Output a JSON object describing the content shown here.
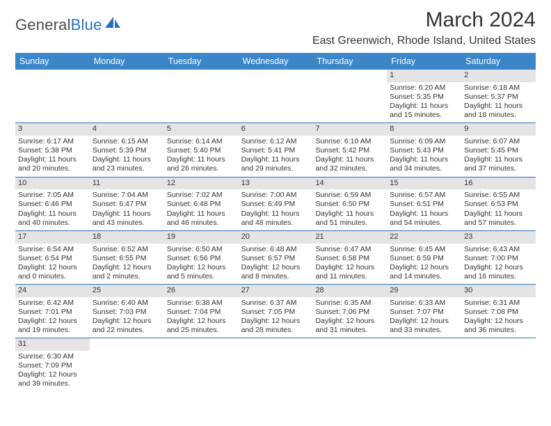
{
  "logo": {
    "general": "General",
    "blue": "Blue"
  },
  "title": "March 2024",
  "location": "East Greenwich, Rhode Island, United States",
  "colors": {
    "header_bg": "#3a86c8",
    "header_text": "#ffffff",
    "daynum_bg": "#e4e4e4",
    "row_border": "#2a71b8",
    "text": "#333333",
    "logo_blue": "#2a71b8"
  },
  "day_headers": [
    "Sunday",
    "Monday",
    "Tuesday",
    "Wednesday",
    "Thursday",
    "Friday",
    "Saturday"
  ],
  "weeks": [
    [
      null,
      null,
      null,
      null,
      null,
      {
        "n": "1",
        "sr": "Sunrise: 6:20 AM",
        "ss": "Sunset: 5:35 PM",
        "dl1": "Daylight: 11 hours",
        "dl2": "and 15 minutes."
      },
      {
        "n": "2",
        "sr": "Sunrise: 6:18 AM",
        "ss": "Sunset: 5:37 PM",
        "dl1": "Daylight: 11 hours",
        "dl2": "and 18 minutes."
      }
    ],
    [
      {
        "n": "3",
        "sr": "Sunrise: 6:17 AM",
        "ss": "Sunset: 5:38 PM",
        "dl1": "Daylight: 11 hours",
        "dl2": "and 20 minutes."
      },
      {
        "n": "4",
        "sr": "Sunrise: 6:15 AM",
        "ss": "Sunset: 5:39 PM",
        "dl1": "Daylight: 11 hours",
        "dl2": "and 23 minutes."
      },
      {
        "n": "5",
        "sr": "Sunrise: 6:14 AM",
        "ss": "Sunset: 5:40 PM",
        "dl1": "Daylight: 11 hours",
        "dl2": "and 26 minutes."
      },
      {
        "n": "6",
        "sr": "Sunrise: 6:12 AM",
        "ss": "Sunset: 5:41 PM",
        "dl1": "Daylight: 11 hours",
        "dl2": "and 29 minutes."
      },
      {
        "n": "7",
        "sr": "Sunrise: 6:10 AM",
        "ss": "Sunset: 5:42 PM",
        "dl1": "Daylight: 11 hours",
        "dl2": "and 32 minutes."
      },
      {
        "n": "8",
        "sr": "Sunrise: 6:09 AM",
        "ss": "Sunset: 5:43 PM",
        "dl1": "Daylight: 11 hours",
        "dl2": "and 34 minutes."
      },
      {
        "n": "9",
        "sr": "Sunrise: 6:07 AM",
        "ss": "Sunset: 5:45 PM",
        "dl1": "Daylight: 11 hours",
        "dl2": "and 37 minutes."
      }
    ],
    [
      {
        "n": "10",
        "sr": "Sunrise: 7:05 AM",
        "ss": "Sunset: 6:46 PM",
        "dl1": "Daylight: 11 hours",
        "dl2": "and 40 minutes."
      },
      {
        "n": "11",
        "sr": "Sunrise: 7:04 AM",
        "ss": "Sunset: 6:47 PM",
        "dl1": "Daylight: 11 hours",
        "dl2": "and 43 minutes."
      },
      {
        "n": "12",
        "sr": "Sunrise: 7:02 AM",
        "ss": "Sunset: 6:48 PM",
        "dl1": "Daylight: 11 hours",
        "dl2": "and 46 minutes."
      },
      {
        "n": "13",
        "sr": "Sunrise: 7:00 AM",
        "ss": "Sunset: 6:49 PM",
        "dl1": "Daylight: 11 hours",
        "dl2": "and 48 minutes."
      },
      {
        "n": "14",
        "sr": "Sunrise: 6:59 AM",
        "ss": "Sunset: 6:50 PM",
        "dl1": "Daylight: 11 hours",
        "dl2": "and 51 minutes."
      },
      {
        "n": "15",
        "sr": "Sunrise: 6:57 AM",
        "ss": "Sunset: 6:51 PM",
        "dl1": "Daylight: 11 hours",
        "dl2": "and 54 minutes."
      },
      {
        "n": "16",
        "sr": "Sunrise: 6:55 AM",
        "ss": "Sunset: 6:53 PM",
        "dl1": "Daylight: 11 hours",
        "dl2": "and 57 minutes."
      }
    ],
    [
      {
        "n": "17",
        "sr": "Sunrise: 6:54 AM",
        "ss": "Sunset: 6:54 PM",
        "dl1": "Daylight: 12 hours",
        "dl2": "and 0 minutes."
      },
      {
        "n": "18",
        "sr": "Sunrise: 6:52 AM",
        "ss": "Sunset: 6:55 PM",
        "dl1": "Daylight: 12 hours",
        "dl2": "and 2 minutes."
      },
      {
        "n": "19",
        "sr": "Sunrise: 6:50 AM",
        "ss": "Sunset: 6:56 PM",
        "dl1": "Daylight: 12 hours",
        "dl2": "and 5 minutes."
      },
      {
        "n": "20",
        "sr": "Sunrise: 6:48 AM",
        "ss": "Sunset: 6:57 PM",
        "dl1": "Daylight: 12 hours",
        "dl2": "and 8 minutes."
      },
      {
        "n": "21",
        "sr": "Sunrise: 6:47 AM",
        "ss": "Sunset: 6:58 PM",
        "dl1": "Daylight: 12 hours",
        "dl2": "and 11 minutes."
      },
      {
        "n": "22",
        "sr": "Sunrise: 6:45 AM",
        "ss": "Sunset: 6:59 PM",
        "dl1": "Daylight: 12 hours",
        "dl2": "and 14 minutes."
      },
      {
        "n": "23",
        "sr": "Sunrise: 6:43 AM",
        "ss": "Sunset: 7:00 PM",
        "dl1": "Daylight: 12 hours",
        "dl2": "and 16 minutes."
      }
    ],
    [
      {
        "n": "24",
        "sr": "Sunrise: 6:42 AM",
        "ss": "Sunset: 7:01 PM",
        "dl1": "Daylight: 12 hours",
        "dl2": "and 19 minutes."
      },
      {
        "n": "25",
        "sr": "Sunrise: 6:40 AM",
        "ss": "Sunset: 7:03 PM",
        "dl1": "Daylight: 12 hours",
        "dl2": "and 22 minutes."
      },
      {
        "n": "26",
        "sr": "Sunrise: 6:38 AM",
        "ss": "Sunset: 7:04 PM",
        "dl1": "Daylight: 12 hours",
        "dl2": "and 25 minutes."
      },
      {
        "n": "27",
        "sr": "Sunrise: 6:37 AM",
        "ss": "Sunset: 7:05 PM",
        "dl1": "Daylight: 12 hours",
        "dl2": "and 28 minutes."
      },
      {
        "n": "28",
        "sr": "Sunrise: 6:35 AM",
        "ss": "Sunset: 7:06 PM",
        "dl1": "Daylight: 12 hours",
        "dl2": "and 31 minutes."
      },
      {
        "n": "29",
        "sr": "Sunrise: 6:33 AM",
        "ss": "Sunset: 7:07 PM",
        "dl1": "Daylight: 12 hours",
        "dl2": "and 33 minutes."
      },
      {
        "n": "30",
        "sr": "Sunrise: 6:31 AM",
        "ss": "Sunset: 7:08 PM",
        "dl1": "Daylight: 12 hours",
        "dl2": "and 36 minutes."
      }
    ],
    [
      {
        "n": "31",
        "sr": "Sunrise: 6:30 AM",
        "ss": "Sunset: 7:09 PM",
        "dl1": "Daylight: 12 hours",
        "dl2": "and 39 minutes."
      },
      null,
      null,
      null,
      null,
      null,
      null
    ]
  ]
}
